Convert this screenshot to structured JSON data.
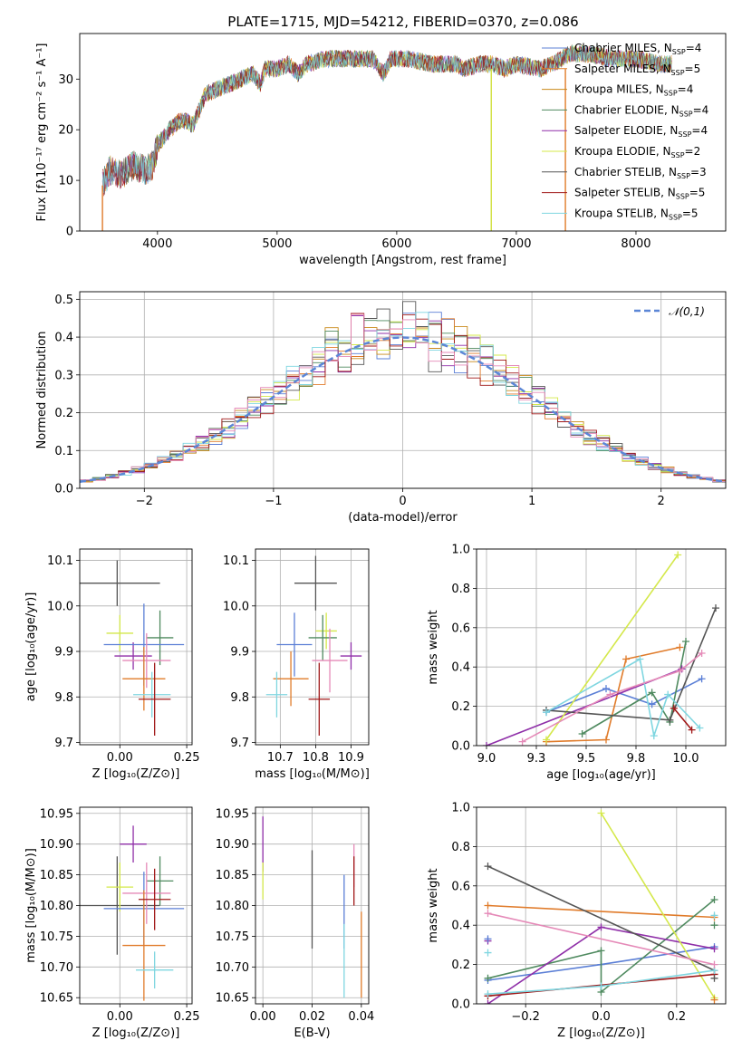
{
  "title": "PLATE=1715, MJD=54212, FIBERID=0370, z=0.086",
  "colors": {
    "blue": "#5b7fd6",
    "orange": "#e07b2a",
    "darkorange": "#c98a1a",
    "green": "#4f8a5f",
    "purple": "#8f2fa8",
    "yellowgreen": "#d4e84a",
    "darkgray": "#555555",
    "darkred": "#a01818",
    "cyan": "#7fd6e0",
    "pink": "#e58ab8",
    "lightgreen": "#a8d08d"
  },
  "chart_data": [
    {
      "id": "spectrum",
      "type": "line",
      "xlabel": "wavelength [Angstrom, rest frame]",
      "ylabel": "Flux [fλ10⁻¹⁷ erg cm⁻² s⁻¹ A⁻¹]",
      "xlim": [
        3350,
        8750
      ],
      "ylim": [
        0,
        39
      ],
      "xticks": [
        4000,
        5000,
        6000,
        7000,
        8000
      ],
      "yticks": [
        0,
        10,
        20,
        30
      ],
      "grid": false,
      "legend_position": "upper-right",
      "series": [
        {
          "name": "Chabrier MILES, N_SSP=4",
          "color": "#5b7fd6",
          "marker": "+"
        },
        {
          "name": "Salpeter MILES, N_SSP=5",
          "color": "#e07b2a"
        },
        {
          "name": "Kroupa MILES, N_SSP=4",
          "color": "#c98a1a"
        },
        {
          "name": "Chabrier ELODIE, N_SSP=4",
          "color": "#4f8a5f"
        },
        {
          "name": "Salpeter ELODIE, N_SSP=4",
          "color": "#8f2fa8"
        },
        {
          "name": "Kroupa ELODIE, N_SSP=2",
          "color": "#d4e84a"
        },
        {
          "name": "Chabrier STELIB, N_SSP=3",
          "color": "#555555"
        },
        {
          "name": "Salpeter STELIB, N_SSP=5",
          "color": "#a01818"
        },
        {
          "name": "Kroupa STELIB, N_SSP=5",
          "color": "#7fd6e0"
        }
      ],
      "continuum": [
        [
          3540,
          9
        ],
        [
          3600,
          12
        ],
        [
          3700,
          11
        ],
        [
          3800,
          13
        ],
        [
          3900,
          12
        ],
        [
          3960,
          13
        ],
        [
          4000,
          17
        ],
        [
          4100,
          20
        ],
        [
          4200,
          22
        ],
        [
          4300,
          21
        ],
        [
          4350,
          24
        ],
        [
          4400,
          27
        ],
        [
          4500,
          28
        ],
        [
          4600,
          29
        ],
        [
          4700,
          30
        ],
        [
          4800,
          31
        ],
        [
          4860,
          29
        ],
        [
          4900,
          32
        ],
        [
          5000,
          32
        ],
        [
          5100,
          33
        ],
        [
          5175,
          31
        ],
        [
          5250,
          33
        ],
        [
          5400,
          34
        ],
        [
          5500,
          34
        ],
        [
          5600,
          34
        ],
        [
          5700,
          34
        ],
        [
          5800,
          34
        ],
        [
          5890,
          31
        ],
        [
          5950,
          34
        ],
        [
          6100,
          34
        ],
        [
          6300,
          33
        ],
        [
          6500,
          33
        ],
        [
          6563,
          32
        ],
        [
          6700,
          33
        ],
        [
          6800,
          33
        ],
        [
          6900,
          32
        ],
        [
          7000,
          33
        ],
        [
          7200,
          32
        ],
        [
          7300,
          33
        ],
        [
          7450,
          35
        ],
        [
          7600,
          35
        ],
        [
          7800,
          34
        ],
        [
          8000,
          34
        ],
        [
          8200,
          33
        ],
        [
          8300,
          33
        ]
      ]
    },
    {
      "id": "residuals",
      "type": "histogram",
      "xlabel": "(data-model)/error",
      "ylabel": "Normed distribution",
      "xlim": [
        -2.5,
        2.5
      ],
      "ylim": [
        0,
        0.52
      ],
      "xticks": [
        -2,
        -1,
        0,
        1,
        2
      ],
      "yticks": [
        0.0,
        0.1,
        0.2,
        0.3,
        0.4,
        0.5
      ],
      "grid": true,
      "bins": 50,
      "reference_curve": {
        "name": "𝒩(0,1)",
        "style": "dashed",
        "color": "#5b86d6"
      },
      "legend_position": "upper-right"
    },
    {
      "id": "z-vs-age",
      "type": "errorbar",
      "xlabel": "Z [log₁₀(Z/Z⊙)]",
      "ylabel": "age  [log₁₀(age/yr)]",
      "xlim": [
        -0.15,
        0.27
      ],
      "ylim": [
        9.695,
        10.125
      ],
      "xticks": [
        0.0,
        0.25
      ],
      "yticks": [
        9.7,
        9.8,
        9.9,
        10.0,
        10.1
      ],
      "points": [
        {
          "x": -0.01,
          "y": 10.05,
          "xerr": 0.16,
          "yerr": 0.05,
          "color": "#555555"
        },
        {
          "x": 0.0,
          "y": 9.94,
          "xerr": 0.05,
          "yerr": 0.04,
          "color": "#d4e84a"
        },
        {
          "x": 0.05,
          "y": 9.89,
          "xerr": 0.07,
          "yerr": 0.03,
          "color": "#8f2fa8"
        },
        {
          "x": 0.15,
          "y": 9.93,
          "xerr": 0.05,
          "yerr": 0.06,
          "color": "#4f8a5f"
        },
        {
          "x": 0.09,
          "y": 9.915,
          "xerr": 0.15,
          "yerr": 0.09,
          "color": "#5b7fd6"
        },
        {
          "x": 0.1,
          "y": 9.88,
          "xerr": 0.09,
          "yerr": 0.06,
          "color": "#e58ab8"
        },
        {
          "x": 0.09,
          "y": 9.84,
          "xerr": 0.08,
          "yerr": 0.07,
          "color": "#e07b2a"
        },
        {
          "x": 0.12,
          "y": 9.805,
          "xerr": 0.07,
          "yerr": 0.05,
          "color": "#7fd6e0"
        },
        {
          "x": 0.13,
          "y": 9.795,
          "xerr": 0.06,
          "yerr": 0.08,
          "color": "#a01818"
        }
      ]
    },
    {
      "id": "mass-vs-age",
      "type": "errorbar",
      "xlabel": "mass [log₁₀(M/M⊙)]",
      "ylabel": "",
      "xlim": [
        10.63,
        10.95
      ],
      "ylim": [
        9.695,
        10.125
      ],
      "xticks": [
        10.7,
        10.8,
        10.9
      ],
      "yticks": [
        9.7,
        9.8,
        9.9,
        10.0,
        10.1
      ],
      "points": [
        {
          "x": 10.8,
          "y": 10.05,
          "xerr": 0.06,
          "yerr": 0.06,
          "color": "#555555"
        },
        {
          "x": 10.83,
          "y": 9.945,
          "xerr": 0.03,
          "yerr": 0.04,
          "color": "#d4e84a"
        },
        {
          "x": 10.9,
          "y": 9.89,
          "xerr": 0.03,
          "yerr": 0.03,
          "color": "#8f2fa8"
        },
        {
          "x": 10.82,
          "y": 9.93,
          "xerr": 0.04,
          "yerr": 0.05,
          "color": "#4f8a5f"
        },
        {
          "x": 10.74,
          "y": 9.915,
          "xerr": 0.05,
          "yerr": 0.07,
          "color": "#5b7fd6"
        },
        {
          "x": 10.84,
          "y": 9.88,
          "xerr": 0.05,
          "yerr": 0.07,
          "color": "#e58ab8"
        },
        {
          "x": 10.73,
          "y": 9.84,
          "xerr": 0.05,
          "yerr": 0.06,
          "color": "#e07b2a"
        },
        {
          "x": 10.69,
          "y": 9.805,
          "xerr": 0.03,
          "yerr": 0.05,
          "color": "#7fd6e0"
        },
        {
          "x": 10.81,
          "y": 9.795,
          "xerr": 0.03,
          "yerr": 0.08,
          "color": "#a01818"
        }
      ]
    },
    {
      "id": "weights-vs-age",
      "type": "line",
      "xlabel": "age  [log₁₀(age/yr)]",
      "ylabel": "mass weight",
      "xlim": [
        8.95,
        10.2
      ],
      "ylim": [
        0,
        1.0
      ],
      "xticks": [
        9.0,
        9.25,
        9.5,
        9.75,
        10.0
      ],
      "yticks": [
        0.0,
        0.2,
        0.4,
        0.6,
        0.8,
        1.0
      ],
      "grid": true,
      "series": [
        {
          "color": "#5b7fd6",
          "x": [
            9.3,
            9.6,
            9.83,
            10.08
          ],
          "y": [
            0.17,
            0.29,
            0.21,
            0.34
          ]
        },
        {
          "color": "#e07b2a",
          "x": [
            9.3,
            9.6,
            9.7,
            9.97
          ],
          "y": [
            0.02,
            0.03,
            0.44,
            0.5
          ]
        },
        {
          "color": "#4f8a5f",
          "x": [
            9.48,
            9.83,
            9.92,
            10.0
          ],
          "y": [
            0.06,
            0.27,
            0.12,
            0.53
          ]
        },
        {
          "color": "#8f2fa8",
          "x": [
            9.0,
            9.98
          ],
          "y": [
            0.0,
            0.39
          ]
        },
        {
          "color": "#d4e84a",
          "x": [
            9.3,
            9.96
          ],
          "y": [
            0.03,
            0.97
          ]
        },
        {
          "color": "#555555",
          "x": [
            9.3,
            9.92,
            10.15
          ],
          "y": [
            0.18,
            0.13,
            0.7
          ]
        },
        {
          "color": "#a01818",
          "x": [
            9.94,
            10.03
          ],
          "y": [
            0.19,
            0.08
          ]
        },
        {
          "color": "#7fd6e0",
          "x": [
            9.3,
            9.77,
            9.84,
            9.91,
            10.07
          ],
          "y": [
            0.17,
            0.44,
            0.05,
            0.26,
            0.09
          ]
        },
        {
          "color": "#e58ab8",
          "x": [
            9.18,
            9.62,
            9.97,
            10.08
          ],
          "y": [
            0.02,
            0.26,
            0.38,
            0.47
          ]
        }
      ]
    },
    {
      "id": "z-vs-mass",
      "type": "errorbar",
      "xlabel": "Z [log₁₀(Z/Z⊙)]",
      "ylabel": "mass [log₁₀(M/M⊙)]",
      "xlim": [
        -0.15,
        0.27
      ],
      "ylim": [
        10.64,
        10.96
      ],
      "xticks": [
        0.0,
        0.25
      ],
      "yticks": [
        10.65,
        10.7,
        10.75,
        10.8,
        10.85,
        10.9,
        10.95
      ],
      "points": [
        {
          "x": -0.01,
          "y": 10.8,
          "xerr": 0.16,
          "yerr": 0.08,
          "color": "#555555"
        },
        {
          "x": 0.0,
          "y": 10.83,
          "xerr": 0.05,
          "yerr": 0.04,
          "color": "#d4e84a"
        },
        {
          "x": 0.05,
          "y": 10.9,
          "xerr": 0.05,
          "yerr": 0.03,
          "color": "#8f2fa8"
        },
        {
          "x": 0.15,
          "y": 10.84,
          "xerr": 0.05,
          "yerr": 0.04,
          "color": "#4f8a5f"
        },
        {
          "x": 0.09,
          "y": 10.795,
          "xerr": 0.15,
          "yerr": 0.06,
          "color": "#5b7fd6"
        },
        {
          "x": 0.1,
          "y": 10.82,
          "xerr": 0.09,
          "yerr": 0.05,
          "color": "#e58ab8"
        },
        {
          "x": 0.09,
          "y": 10.735,
          "xerr": 0.08,
          "yerr": 0.09,
          "color": "#e07b2a"
        },
        {
          "x": 0.13,
          "y": 10.695,
          "xerr": 0.07,
          "yerr": 0.03,
          "color": "#7fd6e0"
        },
        {
          "x": 0.13,
          "y": 10.81,
          "xerr": 0.06,
          "yerr": 0.05,
          "color": "#a01818"
        }
      ]
    },
    {
      "id": "ebv-vs-mass",
      "type": "errorbar",
      "xlabel": "E(B-V)",
      "ylabel": "",
      "xlim": [
        -0.003,
        0.043
      ],
      "ylim": [
        10.64,
        10.96
      ],
      "xticks": [
        0.0,
        0.02,
        0.04
      ],
      "yticks": [
        10.65,
        10.7,
        10.75,
        10.8,
        10.85,
        10.9,
        10.95
      ],
      "points": [
        {
          "x": 0.0,
          "y": 10.9,
          "yerr": 0.045,
          "color": "#8f2fa8"
        },
        {
          "x": 0.0,
          "y": 10.84,
          "yerr": 0.03,
          "color": "#d4e84a"
        },
        {
          "x": 0.02,
          "y": 10.81,
          "yerr": 0.08,
          "color": "#555555"
        },
        {
          "x": 0.033,
          "y": 10.79,
          "yerr": 0.06,
          "color": "#5b7fd6"
        },
        {
          "x": 0.033,
          "y": 10.71,
          "yerr": 0.06,
          "color": "#7fd6e0"
        },
        {
          "x": 0.037,
          "y": 10.865,
          "yerr": 0.035,
          "color": "#e58ab8"
        },
        {
          "x": 0.037,
          "y": 10.84,
          "yerr": 0.04,
          "color": "#a01818"
        },
        {
          "x": 0.04,
          "y": 10.72,
          "yerr": 0.07,
          "color": "#e07b2a"
        }
      ]
    },
    {
      "id": "weights-vs-z",
      "type": "line",
      "xlabel": "Z [log₁₀(Z/Z⊙)]",
      "ylabel": "mass weight",
      "xlim": [
        -0.33,
        0.33
      ],
      "ylim": [
        0,
        1.0
      ],
      "xticks": [
        -0.2,
        0.0,
        0.2
      ],
      "yticks": [
        0.0,
        0.2,
        0.4,
        0.6,
        0.8,
        1.0
      ],
      "grid": true,
      "series": [
        {
          "color": "#5b7fd6",
          "x": [
            -0.3,
            0.0,
            0.3
          ],
          "y": [
            0.12,
            0.2,
            0.29
          ]
        },
        {
          "color": "#e07b2a",
          "x": [
            -0.3,
            0.3
          ],
          "y": [
            0.5,
            0.44
          ]
        },
        {
          "color": "#4f8a5f",
          "x": [
            -0.3,
            0.0,
            0.0,
            0.3
          ],
          "y": [
            0.13,
            0.27,
            0.06,
            0.53
          ]
        },
        {
          "color": "#8f2fa8",
          "x": [
            -0.3,
            0.0,
            0.3
          ],
          "y": [
            0.0,
            0.39,
            0.28
          ]
        },
        {
          "color": "#d4e84a",
          "x": [
            0.0,
            0.3
          ],
          "y": [
            0.97,
            0.03
          ]
        },
        {
          "color": "#555555",
          "x": [
            -0.3,
            0.3
          ],
          "y": [
            0.7,
            0.17
          ]
        },
        {
          "color": "#a01818",
          "x": [
            -0.3,
            0.3
          ],
          "y": [
            0.04,
            0.15
          ]
        },
        {
          "color": "#7fd6e0",
          "x": [
            -0.3,
            0.0,
            0.3
          ],
          "y": [
            0.05,
            0.09,
            0.17
          ]
        },
        {
          "color": "#e58ab8",
          "x": [
            -0.3,
            0.3
          ],
          "y": [
            0.46,
            0.2
          ]
        }
      ],
      "edge_markers": [
        {
          "x": -0.3,
          "y": 0.32,
          "color": "#8f2fa8"
        },
        {
          "x": -0.3,
          "y": 0.26,
          "color": "#7fd6e0"
        },
        {
          "x": -0.3,
          "y": 0.33,
          "color": "#5b7fd6"
        },
        {
          "x": 0.3,
          "y": 0.45,
          "color": "#7fd6e0"
        },
        {
          "x": 0.3,
          "y": 0.13,
          "color": "#555555"
        },
        {
          "x": 0.3,
          "y": 0.02,
          "color": "#e07b2a"
        },
        {
          "x": 0.3,
          "y": 0.4,
          "color": "#4f8a5f"
        }
      ]
    }
  ]
}
